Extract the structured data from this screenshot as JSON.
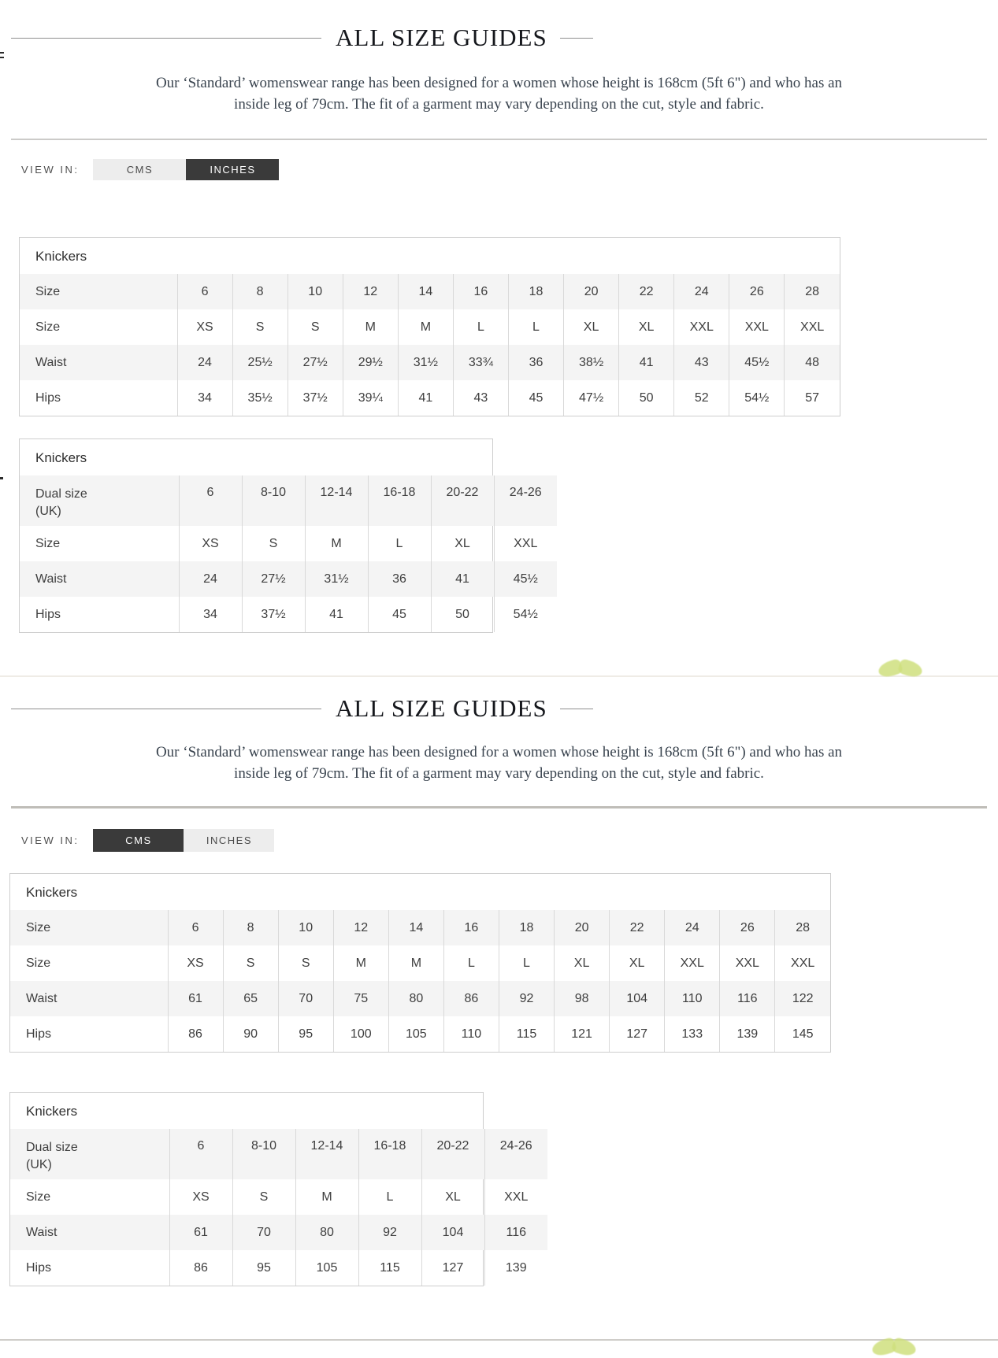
{
  "theme": {
    "toggle_selected_bg": "#3a3a3a",
    "toggle_unselected_bg": "#ededed",
    "row_stripe": "#f4f4f4",
    "table_border": "#cdcdcd",
    "ornament_green": "#cfe07e"
  },
  "sections": [
    {
      "heading": "ALL SIZE GUIDES",
      "intro_line1": "Our ‘Standard’ womenswear range has been designed for a women whose height is 168cm (5ft 6\") and who has an",
      "intro_line2": "inside leg of 79cm. The fit of a garment may vary depending on the cut, style and fabric.",
      "view_in_label": "VIEW IN:",
      "toggle": {
        "cms": "CMS",
        "inches": "INCHES",
        "selected": "INCHES"
      },
      "size_table": {
        "title": "Knickers",
        "rows": [
          {
            "label": "Size",
            "values": [
              "6",
              "8",
              "10",
              "12",
              "14",
              "16",
              "18",
              "20",
              "22",
              "24",
              "26",
              "28"
            ]
          },
          {
            "label": "Size",
            "values": [
              "XS",
              "S",
              "S",
              "M",
              "M",
              "L",
              "L",
              "XL",
              "XL",
              "XXL",
              "XXL",
              "XXL"
            ]
          },
          {
            "label": "Waist",
            "values": [
              "24",
              "25½",
              "27½",
              "29½",
              "31½",
              "33¾",
              "36",
              "38½",
              "41",
              "43",
              "45½",
              "48"
            ]
          },
          {
            "label": "Hips",
            "values": [
              "34",
              "35½",
              "37½",
              "39¼",
              "41",
              "43",
              "45",
              "47½",
              "50",
              "52",
              "54½",
              "57"
            ]
          }
        ]
      },
      "dual_table": {
        "title": "Knickers",
        "rows": [
          {
            "label": "Dual size\n(UK)",
            "values": [
              "6",
              "8-10",
              "12-14",
              "16-18",
              "20-22",
              "24-26"
            ]
          },
          {
            "label": "Size",
            "values": [
              "XS",
              "S",
              "M",
              "L",
              "XL",
              "XXL"
            ]
          },
          {
            "label": "Waist",
            "values": [
              "24",
              "27½",
              "31½",
              "36",
              "41",
              "45½"
            ]
          },
          {
            "label": "Hips",
            "values": [
              "34",
              "37½",
              "41",
              "45",
              "50",
              "54½"
            ]
          }
        ]
      }
    },
    {
      "heading": "ALL SIZE GUIDES",
      "intro_line1": "Our ‘Standard’ womenswear range has been designed for a women whose height is 168cm (5ft 6\") and who has an",
      "intro_line2": "inside leg of 79cm. The fit of a garment may vary depending on the cut, style and fabric.",
      "view_in_label": "VIEW IN:",
      "toggle": {
        "cms": "CMS",
        "inches": "INCHES",
        "selected": "CMS"
      },
      "size_table": {
        "title": "Knickers",
        "rows": [
          {
            "label": "Size",
            "values": [
              "6",
              "8",
              "10",
              "12",
              "14",
              "16",
              "18",
              "20",
              "22",
              "24",
              "26",
              "28"
            ]
          },
          {
            "label": "Size",
            "values": [
              "XS",
              "S",
              "S",
              "M",
              "M",
              "L",
              "L",
              "XL",
              "XL",
              "XXL",
              "XXL",
              "XXL"
            ]
          },
          {
            "label": "Waist",
            "values": [
              "61",
              "65",
              "70",
              "75",
              "80",
              "86",
              "92",
              "98",
              "104",
              "110",
              "116",
              "122"
            ]
          },
          {
            "label": "Hips",
            "values": [
              "86",
              "90",
              "95",
              "100",
              "105",
              "110",
              "115",
              "121",
              "127",
              "133",
              "139",
              "145"
            ]
          }
        ]
      },
      "dual_table": {
        "title": "Knickers",
        "rows": [
          {
            "label": "Dual size\n(UK)",
            "values": [
              "6",
              "8-10",
              "12-14",
              "16-18",
              "20-22",
              "24-26"
            ]
          },
          {
            "label": "Size",
            "values": [
              "XS",
              "S",
              "M",
              "L",
              "XL",
              "XXL"
            ]
          },
          {
            "label": "Waist",
            "values": [
              "61",
              "70",
              "80",
              "92",
              "104",
              "116"
            ]
          },
          {
            "label": "Hips",
            "values": [
              "86",
              "95",
              "105",
              "115",
              "127",
              "139"
            ]
          }
        ]
      }
    }
  ]
}
